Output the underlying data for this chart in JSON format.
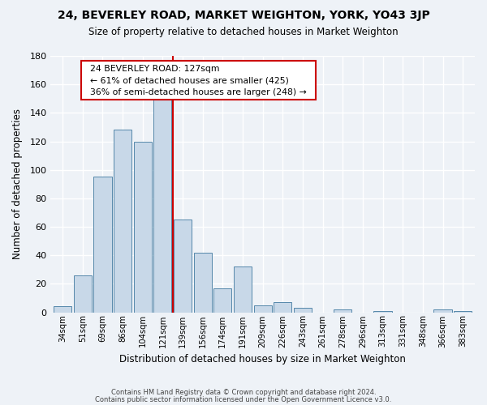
{
  "title": "24, BEVERLEY ROAD, MARKET WEIGHTON, YORK, YO43 3JP",
  "subtitle": "Size of property relative to detached houses in Market Weighton",
  "xlabel": "Distribution of detached houses by size in Market Weighton",
  "ylabel": "Number of detached properties",
  "bar_labels": [
    "34sqm",
    "51sqm",
    "69sqm",
    "86sqm",
    "104sqm",
    "121sqm",
    "139sqm",
    "156sqm",
    "174sqm",
    "191sqm",
    "209sqm",
    "226sqm",
    "243sqm",
    "261sqm",
    "278sqm",
    "296sqm",
    "313sqm",
    "331sqm",
    "348sqm",
    "366sqm",
    "383sqm"
  ],
  "bar_values": [
    4,
    26,
    95,
    128,
    120,
    150,
    65,
    42,
    17,
    32,
    5,
    7,
    3,
    0,
    2,
    0,
    1,
    0,
    0,
    2,
    1
  ],
  "bar_color": "#c8d8e8",
  "bar_edge_color": "#5588aa",
  "vline_x": 5.5,
  "vline_color": "#cc0000",
  "annotation_title": "24 BEVERLEY ROAD: 127sqm",
  "annotation_line1": "← 61% of detached houses are smaller (425)",
  "annotation_line2": "36% of semi-detached houses are larger (248) →",
  "annotation_box_color": "#ffffff",
  "annotation_box_edge": "#cc0000",
  "ylim": [
    0,
    180
  ],
  "yticks": [
    0,
    20,
    40,
    60,
    80,
    100,
    120,
    140,
    160,
    180
  ],
  "footer1": "Contains HM Land Registry data © Crown copyright and database right 2024.",
  "footer2": "Contains public sector information licensed under the Open Government Licence v3.0.",
  "bg_color": "#eef2f7",
  "plot_bg_color": "#eef2f7"
}
